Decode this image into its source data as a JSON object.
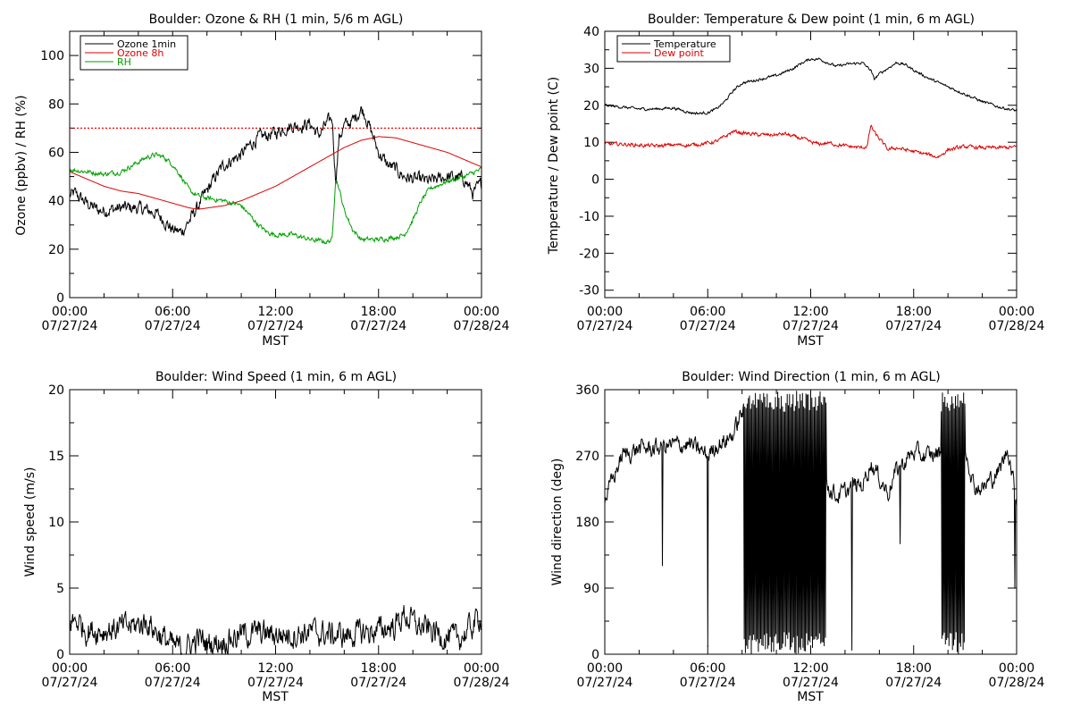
{
  "chart_data": [
    {
      "type": "line",
      "title": "Boulder: Ozone & RH (1 min, 5/6 m AGL)",
      "xlabel": "MST",
      "ylabel": "Ozone (ppbv) / RH (%)",
      "xlim": [
        0,
        24
      ],
      "ylim": [
        0,
        110
      ],
      "yticks": [
        0,
        20,
        40,
        60,
        80,
        100
      ],
      "xtick_labels": [
        {
          "time": "00:00",
          "date": "07/27/24"
        },
        {
          "time": "06:00",
          "date": "07/27/24"
        },
        {
          "time": "12:00",
          "date": "07/27/24"
        },
        {
          "time": "18:00",
          "date": "07/27/24"
        },
        {
          "time": "00:00",
          "date": "07/28/24"
        }
      ],
      "legend": {
        "placement": "top-left",
        "entries": [
          "Ozone 1min",
          "Ozone 8h",
          "RH"
        ]
      },
      "reference_line": {
        "y": 70,
        "style": "dotted",
        "color": "#ff0000"
      },
      "series": [
        {
          "name": "Ozone 1min",
          "color": "#000000",
          "noise": 2.2,
          "x": [
            0,
            0.3,
            1,
            1.7,
            2,
            3,
            4,
            5,
            5.5,
            6,
            6.5,
            7,
            7.5,
            8,
            8.5,
            9,
            10,
            10.5,
            11,
            12,
            12.5,
            13,
            13.5,
            14,
            14.5,
            15,
            15.3,
            15.5,
            15.7,
            16,
            16.5,
            17,
            17.2,
            17.5,
            18,
            18.5,
            19,
            19.5,
            20,
            21,
            22,
            23,
            23.5,
            24
          ],
          "y": [
            42,
            43,
            39,
            36,
            36,
            37,
            37,
            35,
            32,
            28,
            27,
            32,
            38,
            44,
            50,
            55,
            59,
            63,
            66,
            68,
            70,
            71,
            71,
            72,
            67,
            72,
            74,
            48,
            66,
            71,
            73,
            78,
            76,
            70,
            60,
            55,
            53,
            50,
            49,
            48,
            50,
            49,
            43,
            47
          ]
        },
        {
          "name": "Ozone 8h",
          "color": "#dd0000",
          "noise": 0,
          "x": [
            0,
            1,
            2,
            3,
            4,
            5,
            6,
            7,
            7.5,
            8,
            9,
            10,
            11,
            12,
            13,
            14,
            15,
            16,
            17,
            18,
            19,
            20,
            21,
            22,
            23,
            24
          ],
          "y": [
            52,
            49,
            46,
            44,
            43,
            41,
            39,
            37,
            36.5,
            37,
            38,
            40,
            43,
            46,
            50,
            54,
            58,
            62,
            65,
            66.5,
            66,
            64,
            62,
            60,
            57,
            54
          ]
        },
        {
          "name": "RH",
          "color": "#00a000",
          "noise": 0.8,
          "x": [
            0,
            1,
            2,
            3,
            3.5,
            4,
            4.5,
            5,
            5.5,
            6,
            6.5,
            7,
            7.5,
            8,
            9,
            10,
            10.5,
            11,
            11.5,
            12,
            13,
            14,
            15,
            15.3,
            15.5,
            15.7,
            16,
            16.5,
            17,
            18,
            19,
            19.5,
            20,
            20.5,
            21,
            22,
            23,
            24
          ],
          "y": [
            53,
            52,
            51,
            52,
            54,
            56,
            58,
            59,
            58,
            55,
            50,
            44,
            42,
            41,
            40,
            38,
            34,
            30,
            27,
            26,
            26,
            24,
            23,
            24,
            50,
            45,
            36,
            28,
            24,
            24,
            25,
            26,
            32,
            40,
            45,
            48,
            50,
            53
          ]
        }
      ]
    },
    {
      "type": "line",
      "title": "Boulder: Temperature & Dew point (1 min, 6 m AGL)",
      "xlabel": "MST",
      "ylabel": "Temperature / Dew point (C)",
      "xlim": [
        0,
        24
      ],
      "ylim": [
        -32,
        40
      ],
      "yticks": [
        -30,
        -20,
        -10,
        0,
        10,
        20,
        30,
        40
      ],
      "xtick_labels": [
        {
          "time": "00:00",
          "date": "07/27/24"
        },
        {
          "time": "06:00",
          "date": "07/27/24"
        },
        {
          "time": "12:00",
          "date": "07/27/24"
        },
        {
          "time": "18:00",
          "date": "07/27/24"
        },
        {
          "time": "00:00",
          "date": "07/28/24"
        }
      ],
      "legend": {
        "placement": "top-left",
        "entries": [
          "Temperature",
          "Dew point"
        ]
      },
      "series": [
        {
          "name": "Temperature",
          "color": "#000000",
          "noise": 0.3,
          "x": [
            0,
            1,
            2,
            3,
            4,
            5,
            5.5,
            6,
            6.5,
            7,
            7.5,
            8,
            9,
            10,
            11,
            11.5,
            12,
            12.5,
            13,
            13.5,
            14,
            15,
            15.5,
            15.7,
            16,
            16.5,
            17,
            17.5,
            18,
            19,
            20,
            21,
            22,
            23,
            24
          ],
          "y": [
            20,
            19.5,
            19,
            19,
            19.3,
            18,
            17.8,
            18,
            19,
            21,
            24,
            26,
            27,
            28,
            30,
            31.5,
            32.5,
            32.5,
            31.5,
            30.5,
            31,
            31.5,
            29.5,
            27,
            28.5,
            30,
            31.5,
            31,
            29.5,
            27,
            25,
            23,
            21,
            19.5,
            18.5
          ]
        },
        {
          "name": "Dew point",
          "color": "#dd0000",
          "noise": 0.4,
          "x": [
            0,
            1,
            2,
            3,
            4,
            5,
            6,
            6.5,
            7,
            7.5,
            8,
            9,
            10,
            10.5,
            11,
            11.5,
            12,
            12.5,
            13,
            14,
            15,
            15.3,
            15.5,
            15.8,
            16,
            16.5,
            17,
            18,
            19,
            19.3,
            19.6,
            20,
            21,
            22,
            23,
            24
          ],
          "y": [
            9.5,
            9.5,
            9.2,
            9,
            9.3,
            9.2,
            9.8,
            10.2,
            11.5,
            13,
            12.5,
            12,
            12,
            12.3,
            11.5,
            11,
            10,
            9.5,
            9.8,
            9,
            8.5,
            9,
            14.5,
            12,
            11,
            8,
            8.5,
            7.5,
            6.5,
            6,
            6.5,
            8,
            8.8,
            8.5,
            8.5,
            8.7
          ]
        }
      ]
    },
    {
      "type": "line",
      "title": "Boulder: Wind Speed (1 min, 6 m AGL)",
      "xlabel": "MST",
      "ylabel": "Wind speed (m/s)",
      "xlim": [
        0,
        24
      ],
      "ylim": [
        0,
        20
      ],
      "yticks": [
        0,
        5,
        10,
        15,
        20
      ],
      "xtick_labels": [
        {
          "time": "00:00",
          "date": "07/27/24"
        },
        {
          "time": "06:00",
          "date": "07/27/24"
        },
        {
          "time": "12:00",
          "date": "07/27/24"
        },
        {
          "time": "18:00",
          "date": "07/27/24"
        },
        {
          "time": "00:00",
          "date": "07/28/24"
        }
      ],
      "series": [
        {
          "name": "",
          "color": "#000000",
          "noise": 0.8,
          "floor": 0,
          "x": [
            0,
            0.5,
            1,
            2,
            3,
            4,
            4.5,
            5,
            5.5,
            6,
            6.5,
            7,
            7.5,
            8,
            9,
            10,
            11,
            12,
            13,
            14,
            15,
            16,
            17,
            18,
            19,
            19.5,
            20,
            20.5,
            21,
            22,
            22.5,
            23,
            23.5,
            24
          ],
          "y": [
            2.5,
            2.5,
            1.8,
            1.8,
            2,
            2.2,
            2.5,
            1.8,
            1.2,
            0.6,
            0.4,
            0.6,
            1.2,
            0.8,
            1,
            1.5,
            1.6,
            1.5,
            1.5,
            1.7,
            1.5,
            1.4,
            1.6,
            1.8,
            2.2,
            3,
            2.4,
            2,
            1.8,
            1.3,
            1.1,
            1.5,
            2.2,
            3
          ]
        }
      ]
    },
    {
      "type": "line",
      "title": "Boulder: Wind Direction (1 min, 6 m AGL)",
      "xlabel": "MST",
      "ylabel": "Wind direction (deg)",
      "xlim": [
        0,
        24
      ],
      "ylim": [
        0,
        360
      ],
      "yticks": [
        0,
        90,
        180,
        270,
        360
      ],
      "xtick_labels": [
        {
          "time": "00:00",
          "date": "07/27/24"
        },
        {
          "time": "06:00",
          "date": "07/27/24"
        },
        {
          "time": "12:00",
          "date": "07/27/24"
        },
        {
          "time": "18:00",
          "date": "07/27/24"
        },
        {
          "time": "00:00",
          "date": "07/28/24"
        }
      ],
      "series": [
        {
          "name": "",
          "color": "#000000",
          "noise": 10,
          "floor": 0,
          "ceil": 360,
          "x": [
            0,
            0.5,
            1,
            2,
            3,
            4,
            5,
            6,
            6.5,
            7,
            7.5,
            8,
            12,
            13,
            13.5,
            14,
            14.5,
            15,
            15.5,
            16,
            16.5,
            17,
            18,
            18.5,
            19,
            20,
            20.5,
            21,
            21.5,
            22,
            23,
            23.5,
            24
          ],
          "y": [
            210,
            240,
            270,
            280,
            280,
            285,
            285,
            270,
            285,
            290,
            300,
            330,
            300,
            230,
            215,
            220,
            230,
            230,
            260,
            240,
            220,
            250,
            275,
            270,
            270,
            280,
            300,
            285,
            230,
            225,
            250,
            280,
            210
          ]
        }
      ],
      "wrap_windows": [
        [
          8.1,
          12.9
        ],
        [
          19.6,
          21.0
        ]
      ],
      "isolated_dips": [
        {
          "x": 3.35,
          "y": 120
        },
        {
          "x": 6.0,
          "y": 10
        },
        {
          "x": 14.4,
          "y": 5
        },
        {
          "x": 17.2,
          "y": 150
        },
        {
          "x": 23.9,
          "y": 90
        }
      ]
    }
  ]
}
